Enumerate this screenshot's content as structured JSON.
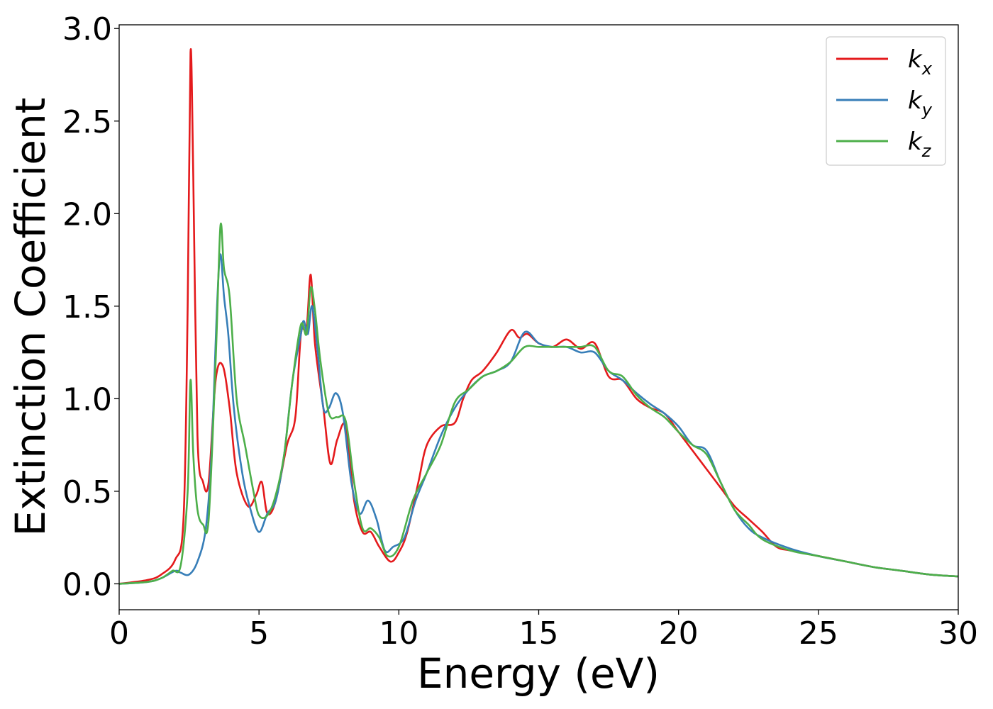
{
  "chart_data": {
    "type": "line",
    "title": "",
    "xlabel": "Energy (eV)",
    "ylabel": "Extinction Coefficient",
    "xlim": [
      0,
      30
    ],
    "ylim": [
      -0.14,
      3.02
    ],
    "xticks": [
      0,
      5,
      10,
      15,
      20,
      25,
      30
    ],
    "xtick_labels": [
      "0",
      "5",
      "10",
      "15",
      "20",
      "25",
      "30"
    ],
    "yticks": [
      0.0,
      0.5,
      1.0,
      1.5,
      2.0,
      2.5,
      3.0
    ],
    "ytick_labels": [
      "0.0",
      "0.5",
      "1.0",
      "1.5",
      "2.0",
      "2.5",
      "3.0"
    ],
    "grid": false,
    "legend_position": "top-right",
    "series": [
      {
        "name": "k_x",
        "label_main": "k",
        "label_sub": "x",
        "color": "#e41a1c",
        "x": [
          0,
          1,
          1.5,
          2.0,
          2.3,
          2.45,
          2.55,
          2.65,
          2.8,
          3.0,
          3.2,
          3.45,
          3.7,
          3.95,
          4.2,
          4.6,
          4.9,
          5.1,
          5.3,
          5.6,
          6.0,
          6.3,
          6.5,
          6.7,
          6.85,
          7.0,
          7.3,
          7.55,
          7.8,
          8.1,
          8.4,
          8.7,
          9.0,
          9.3,
          9.7,
          10.0,
          10.3,
          10.7,
          11.0,
          11.5,
          12.0,
          12.3,
          12.6,
          13.0,
          13.5,
          14.0,
          14.3,
          14.6,
          15.0,
          15.5,
          16.0,
          16.5,
          17.0,
          17.5,
          18.0,
          18.5,
          19.0,
          19.5,
          20.0,
          20.5,
          21.0,
          21.5,
          22.0,
          22.5,
          23.0,
          23.5,
          24.0,
          25.0,
          26.0,
          27.0,
          28.0,
          29.0,
          30.0
        ],
        "values": [
          0.0,
          0.02,
          0.05,
          0.13,
          0.35,
          1.5,
          2.87,
          2.2,
          0.8,
          0.55,
          0.55,
          1.1,
          1.18,
          0.95,
          0.6,
          0.42,
          0.48,
          0.55,
          0.38,
          0.45,
          0.75,
          0.9,
          1.35,
          1.38,
          1.67,
          1.3,
          0.95,
          0.65,
          0.78,
          0.85,
          0.45,
          0.28,
          0.28,
          0.2,
          0.12,
          0.17,
          0.28,
          0.55,
          0.75,
          0.85,
          0.87,
          1.0,
          1.1,
          1.15,
          1.25,
          1.37,
          1.33,
          1.35,
          1.3,
          1.28,
          1.32,
          1.27,
          1.3,
          1.12,
          1.1,
          1.0,
          0.95,
          0.92,
          0.82,
          0.72,
          0.62,
          0.52,
          0.42,
          0.35,
          0.28,
          0.2,
          0.18,
          0.15,
          0.12,
          0.09,
          0.07,
          0.05,
          0.04
        ]
      },
      {
        "name": "k_y",
        "label_main": "k",
        "label_sub": "y",
        "color": "#377eb8",
        "x": [
          0,
          1,
          1.5,
          2.0,
          2.2,
          2.5,
          2.8,
          3.1,
          3.3,
          3.5,
          3.62,
          3.75,
          3.9,
          4.1,
          4.4,
          4.7,
          5.0,
          5.3,
          5.6,
          5.9,
          6.2,
          6.5,
          6.6,
          6.75,
          6.9,
          7.1,
          7.3,
          7.5,
          7.75,
          8.0,
          8.3,
          8.6,
          8.9,
          9.2,
          9.5,
          9.8,
          10.2,
          10.6,
          11.0,
          11.5,
          12.0,
          12.5,
          13.0,
          13.5,
          14.0,
          14.5,
          15.0,
          15.5,
          16.0,
          16.5,
          17.0,
          17.5,
          18.0,
          18.5,
          19.0,
          19.5,
          20.0,
          20.5,
          21.0,
          21.5,
          22.0,
          22.5,
          23.0,
          24.0,
          25.0,
          26.0,
          27.0,
          28.0,
          29.0,
          30.0
        ],
        "values": [
          0.0,
          0.01,
          0.03,
          0.07,
          0.06,
          0.05,
          0.12,
          0.3,
          0.7,
          1.5,
          1.78,
          1.55,
          1.35,
          0.95,
          0.6,
          0.4,
          0.28,
          0.38,
          0.45,
          0.7,
          1.1,
          1.35,
          1.42,
          1.35,
          1.5,
          1.25,
          0.95,
          0.95,
          1.03,
          0.92,
          0.55,
          0.38,
          0.45,
          0.35,
          0.18,
          0.2,
          0.25,
          0.45,
          0.6,
          0.8,
          0.95,
          1.05,
          1.12,
          1.15,
          1.2,
          1.36,
          1.3,
          1.28,
          1.28,
          1.25,
          1.25,
          1.15,
          1.1,
          1.03,
          0.97,
          0.92,
          0.85,
          0.75,
          0.72,
          0.55,
          0.4,
          0.3,
          0.25,
          0.19,
          0.15,
          0.12,
          0.09,
          0.07,
          0.05,
          0.04
        ]
      },
      {
        "name": "k_z",
        "label_main": "k",
        "label_sub": "z",
        "color": "#4daf4a",
        "x": [
          0,
          1,
          1.5,
          1.9,
          2.2,
          2.45,
          2.55,
          2.65,
          2.8,
          3.0,
          3.2,
          3.45,
          3.62,
          3.75,
          3.95,
          4.2,
          4.5,
          4.8,
          5.0,
          5.3,
          5.6,
          5.9,
          6.2,
          6.5,
          6.7,
          6.85,
          7.0,
          7.2,
          7.5,
          7.8,
          8.1,
          8.4,
          8.7,
          9.0,
          9.3,
          9.6,
          10.0,
          10.5,
          11.0,
          11.5,
          12.0,
          12.5,
          13.0,
          13.5,
          14.0,
          14.5,
          15.0,
          15.5,
          16.0,
          16.5,
          17.0,
          17.5,
          18.0,
          18.5,
          19.0,
          19.5,
          20.0,
          20.5,
          21.0,
          21.5,
          22.0,
          22.5,
          23.0,
          24.0,
          25.0,
          26.0,
          27.0,
          28.0,
          29.0,
          30.0
        ],
        "values": [
          0.0,
          0.01,
          0.03,
          0.07,
          0.1,
          0.5,
          1.1,
          0.7,
          0.4,
          0.32,
          0.35,
          1.2,
          1.93,
          1.7,
          1.55,
          1.0,
          0.75,
          0.5,
          0.37,
          0.37,
          0.48,
          0.7,
          1.1,
          1.4,
          1.35,
          1.6,
          1.48,
          1.2,
          0.92,
          0.9,
          0.88,
          0.55,
          0.3,
          0.3,
          0.25,
          0.15,
          0.2,
          0.45,
          0.6,
          0.75,
          0.98,
          1.05,
          1.12,
          1.15,
          1.2,
          1.28,
          1.28,
          1.28,
          1.28,
          1.28,
          1.28,
          1.15,
          1.12,
          1.02,
          0.95,
          0.9,
          0.82,
          0.75,
          0.7,
          0.55,
          0.4,
          0.32,
          0.24,
          0.18,
          0.15,
          0.12,
          0.09,
          0.07,
          0.05,
          0.04
        ]
      }
    ]
  }
}
